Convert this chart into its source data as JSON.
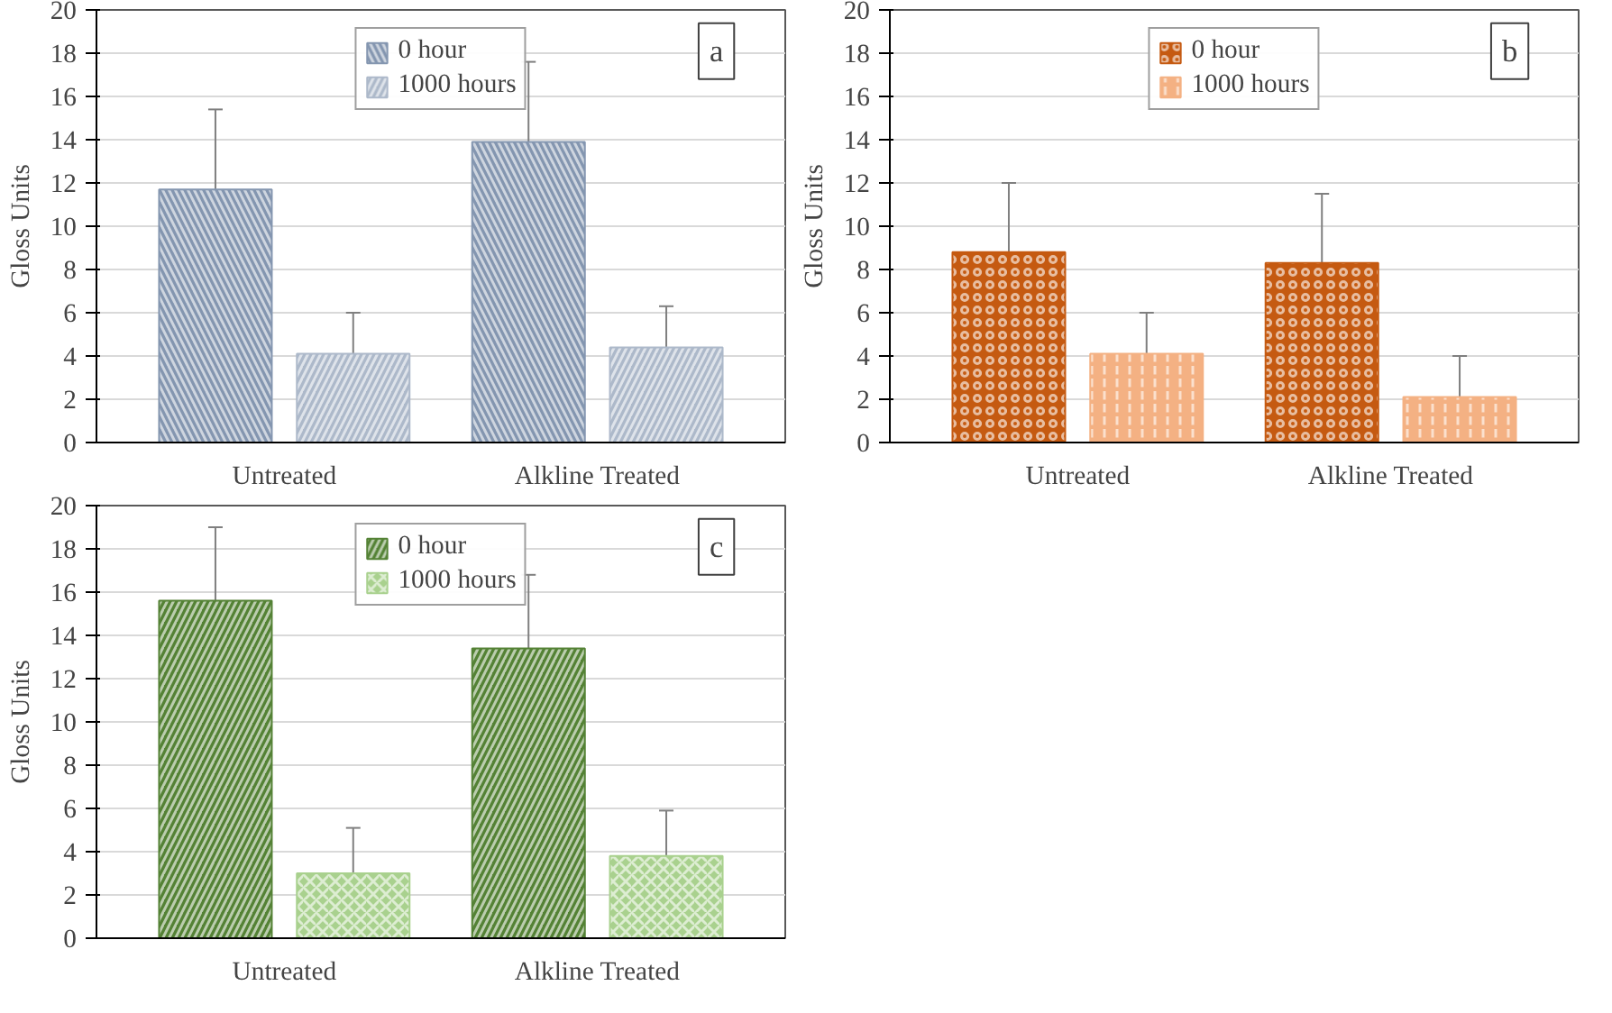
{
  "chart_data": [
    {
      "type": "bar",
      "ylabel": "Gloss Units",
      "categories": [
        "Untreated",
        "Alkline Treated"
      ],
      "ylim": [
        0,
        20
      ],
      "yticks": [
        0,
        2,
        4,
        6,
        8,
        10,
        12,
        14,
        16,
        18,
        20
      ],
      "grid": "y",
      "legend": "top",
      "annotations": [
        "a"
      ],
      "series": [
        {
          "name": "0 hour",
          "color": "#8496b0",
          "values": [
            11.7,
            13.9
          ],
          "errors": [
            3.7,
            3.7
          ]
        },
        {
          "name": "1000 hours",
          "color": "#adb9ca",
          "values": [
            4.1,
            4.4
          ],
          "errors": [
            1.9,
            1.9
          ]
        }
      ]
    },
    {
      "type": "bar",
      "ylabel": "Gloss Units",
      "categories": [
        "Untreated",
        "Alkline Treated"
      ],
      "ylim": [
        0,
        20
      ],
      "yticks": [
        0,
        2,
        4,
        6,
        8,
        10,
        12,
        14,
        16,
        18,
        20
      ],
      "grid": "y",
      "legend": "top",
      "annotations": [
        "b"
      ],
      "series": [
        {
          "name": "0 hour",
          "color": "#c55a11",
          "values": [
            8.8,
            8.3
          ],
          "errors": [
            3.2,
            3.2
          ]
        },
        {
          "name": "1000 hours",
          "color": "#f4b183",
          "values": [
            4.1,
            2.1
          ],
          "errors": [
            1.9,
            1.9
          ]
        }
      ]
    },
    {
      "type": "bar",
      "ylabel": "Gloss Units",
      "categories": [
        "Untreated",
        "Alkline Treated"
      ],
      "ylim": [
        0,
        20
      ],
      "yticks": [
        0,
        2,
        4,
        6,
        8,
        10,
        12,
        14,
        16,
        18,
        20
      ],
      "grid": "y",
      "legend": "top",
      "annotations": [
        "c"
      ],
      "series": [
        {
          "name": "0 hour",
          "color": "#548235",
          "values": [
            15.6,
            13.4
          ],
          "errors": [
            3.4,
            3.4
          ]
        },
        {
          "name": "1000 hours",
          "color": "#a9d18e",
          "values": [
            3.0,
            3.8
          ],
          "errors": [
            2.1,
            2.1
          ]
        }
      ]
    }
  ]
}
